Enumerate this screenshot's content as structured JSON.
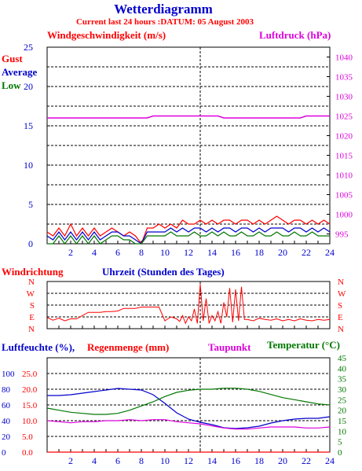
{
  "header": {
    "title": "Wetterdiagramm",
    "subtitle": "Current last 24 hours :DATUM: 05 August 2003"
  },
  "colors": {
    "red": "#ff0000",
    "blue": "#0000cc",
    "green": "#007700",
    "magenta": "#dd00dd",
    "axis": "#000000",
    "grid": "#000000"
  },
  "panel1": {
    "left_title": "Windgeschwindigkeit (m/s)",
    "right_title": "Luftdruck (hPa)",
    "legend": [
      "Gust",
      "Average",
      "Low"
    ]
  },
  "panel2": {
    "left_title": "Windrichtung",
    "center_title": "Uhrzeit (Stunden des Tages)"
  },
  "panel3": {
    "left_title_a": "Luftfeuchte (%),",
    "left_title_b": "Regenmenge (mm)",
    "mid_title": "Taupunkt",
    "right_title": "Temperatur (°C)"
  },
  "chart_data": [
    {
      "type": "line",
      "title": "Windgeschwindigkeit (m/s)",
      "ylabel": "Windgeschwindigkeit (m/s)",
      "y2label": "Luftdruck (hPa)",
      "x": [
        0,
        0.5,
        1,
        1.5,
        2,
        2.5,
        3,
        3.5,
        4,
        4.5,
        5,
        5.5,
        6,
        6.5,
        7,
        7.5,
        8,
        8.5,
        9,
        9.5,
        10,
        10.5,
        11,
        11.5,
        12,
        12.5,
        13,
        13.5,
        14,
        14.5,
        15,
        15.5,
        16,
        16.5,
        17,
        17.5,
        18,
        18.5,
        19,
        19.5,
        20,
        20.5,
        21,
        21.5,
        22,
        22.5,
        23,
        23.5,
        24
      ],
      "xticks": [
        2,
        4,
        6,
        8,
        10,
        12,
        14,
        16,
        18,
        20,
        22,
        24
      ],
      "ylim": [
        0,
        25
      ],
      "yticks": [
        0,
        5,
        10,
        15,
        20,
        25
      ],
      "y2lim": [
        992.5,
        1042.5
      ],
      "y2ticks": [
        995,
        1000,
        1005,
        1010,
        1015,
        1020,
        1025,
        1030,
        1035,
        1040
      ],
      "grid": true,
      "series": [
        {
          "name": "Gust",
          "color": "red",
          "axis": "left",
          "values": [
            1.5,
            1,
            2,
            1,
            2.5,
            1,
            2,
            1,
            2,
            1,
            1.5,
            2,
            1.5,
            1,
            1.5,
            1,
            0,
            2,
            2,
            2.5,
            2,
            2.5,
            2,
            3,
            2.5,
            2.5,
            3,
            2.5,
            3,
            2.5,
            3,
            3,
            2.5,
            3,
            3,
            2.5,
            3,
            2.5,
            3,
            3.5,
            3,
            2.5,
            3,
            3,
            2.5,
            3,
            2.5,
            3,
            2.5
          ]
        },
        {
          "name": "Average",
          "color": "blue",
          "axis": "left",
          "values": [
            1,
            0.5,
            1.5,
            0.5,
            1.5,
            0.5,
            1.5,
            0.5,
            1.5,
            0.5,
            1,
            1.5,
            1.5,
            1,
            1,
            0.5,
            0,
            1.5,
            1.5,
            1.5,
            1.5,
            2,
            1.5,
            2,
            1.5,
            2,
            2,
            1.5,
            2,
            1.5,
            2,
            2,
            1.5,
            2,
            2,
            1.5,
            2,
            1.5,
            2,
            2,
            2,
            1.5,
            2,
            2,
            1.5,
            2,
            1.5,
            2,
            1.5
          ]
        },
        {
          "name": "Low",
          "color": "green",
          "axis": "left",
          "values": [
            0,
            0,
            1,
            0,
            1,
            0,
            1,
            0,
            1,
            0,
            0.5,
            1,
            1,
            0.5,
            0.5,
            0,
            0,
            1,
            1,
            1,
            1,
            1.5,
            1,
            1,
            1,
            1.5,
            1,
            1,
            1.5,
            1,
            1.5,
            1,
            1,
            1.5,
            1,
            1,
            1.5,
            1,
            1,
            1.5,
            1,
            1,
            1.5,
            1,
            1,
            1.5,
            1,
            1,
            1
          ]
        },
        {
          "name": "Luftdruck",
          "color": "magenta",
          "axis": "right",
          "values": [
            1024.5,
            1024.5,
            1024.5,
            1024.5,
            1024.5,
            1024.5,
            1024.5,
            1024.5,
            1024.5,
            1024.5,
            1024.5,
            1024.5,
            1024.5,
            1024.5,
            1024.5,
            1024.5,
            1024.5,
            1024.5,
            1025,
            1025,
            1025,
            1025,
            1025,
            1025,
            1025,
            1025,
            1025,
            1025,
            1025,
            1025,
            1024.5,
            1024.5,
            1024.5,
            1024.5,
            1024.5,
            1024.5,
            1024.5,
            1024.5,
            1024.5,
            1024.5,
            1024.5,
            1024.5,
            1024.5,
            1024.5,
            1025,
            1025,
            1025,
            1025,
            1025
          ]
        }
      ]
    },
    {
      "type": "line",
      "title": "Windrichtung",
      "xlabel": "Uhrzeit (Stunden des Tages)",
      "categories_y": [
        "N",
        "E",
        "S",
        "W",
        "N"
      ],
      "ylim": [
        0,
        360
      ],
      "grid": true,
      "series": [
        {
          "name": "Windrichtung",
          "color": "red",
          "x": [
            0,
            0.5,
            1,
            1.5,
            2,
            2.5,
            3,
            3.5,
            4,
            4.5,
            5,
            5.5,
            6,
            6.5,
            7,
            7.5,
            8,
            8.5,
            9,
            9.5,
            10,
            10.5,
            11,
            11.25,
            11.5,
            11.75,
            12,
            12.25,
            12.5,
            12.75,
            13,
            13.25,
            13.5,
            13.75,
            14,
            14.25,
            14.5,
            14.75,
            15,
            15.25,
            15.5,
            15.75,
            16,
            16.25,
            16.5,
            16.75,
            17,
            17.5,
            18,
            18.5,
            19,
            19.5,
            20,
            20.5,
            21,
            21.5,
            22,
            22.5,
            23,
            23.5,
            24
          ],
          "values": [
            85,
            65,
            80,
            60,
            75,
            75,
            100,
            125,
            125,
            125,
            130,
            130,
            135,
            155,
            155,
            155,
            165,
            165,
            165,
            165,
            60,
            90,
            75,
            55,
            100,
            40,
            90,
            60,
            150,
            40,
            340,
            60,
            230,
            40,
            100,
            60,
            130,
            40,
            200,
            90,
            310,
            50,
            300,
            60,
            320,
            70,
            70,
            60,
            80,
            70,
            65,
            75,
            60,
            70,
            60,
            75,
            65,
            60,
            70,
            65,
            70
          ]
        }
      ]
    },
    {
      "type": "line",
      "title": "Luftfeuchte (%), Regenmenge (mm), Taupunkt, Temperatur (°C)",
      "x": [
        0,
        1,
        2,
        3,
        4,
        5,
        6,
        7,
        8,
        9,
        10,
        11,
        12,
        13,
        14,
        15,
        16,
        17,
        18,
        19,
        20,
        21,
        22,
        23,
        24
      ],
      "xticks": [
        2,
        4,
        6,
        8,
        10,
        12,
        14,
        16,
        18,
        20,
        22,
        24
      ],
      "ylim_humidity": [
        0,
        120
      ],
      "yticks_humidity": [
        0,
        20,
        40,
        60,
        80,
        100
      ],
      "yticks_rain": [
        "0.0",
        "5.0",
        "10.0",
        "15.0",
        "20.0",
        "25.0"
      ],
      "ylim_temp": [
        0,
        45
      ],
      "yticks_temp": [
        0,
        5,
        10,
        15,
        20,
        25,
        30,
        35,
        40,
        45
      ],
      "grid": true,
      "series": [
        {
          "name": "Luftfeuchte",
          "color": "blue",
          "axis": "humidity",
          "values": [
            72,
            72,
            73,
            75,
            77,
            79,
            81,
            80,
            79,
            73,
            62,
            50,
            42,
            38,
            35,
            31,
            30,
            31,
            33,
            37,
            40,
            42,
            43,
            43,
            45
          ]
        },
        {
          "name": "Regenmenge",
          "color": "red",
          "axis": "rain",
          "values": [
            0,
            0,
            0,
            0,
            0,
            0,
            0,
            0,
            0,
            0,
            0,
            0,
            0,
            0,
            0,
            0,
            0,
            0,
            0,
            0,
            0,
            0,
            0,
            0,
            0
          ]
        },
        {
          "name": "Taupunkt",
          "color": "magenta",
          "axis": "temp",
          "values": [
            15,
            14.5,
            14,
            14.5,
            14.5,
            15,
            15,
            15.5,
            15,
            15.5,
            15.5,
            14.5,
            14,
            13.5,
            12.5,
            11.5,
            11,
            11,
            11.5,
            12,
            12,
            12,
            11.5,
            11.5,
            12
          ]
        },
        {
          "name": "Temperatur",
          "color": "green",
          "axis": "temp",
          "values": [
            21,
            20,
            19,
            18.5,
            18,
            18,
            18.5,
            20,
            22,
            24,
            26.5,
            28.5,
            29.5,
            30,
            30,
            30.5,
            30.5,
            30,
            29,
            27.5,
            26,
            25,
            24,
            23,
            22.5
          ]
        }
      ]
    }
  ]
}
